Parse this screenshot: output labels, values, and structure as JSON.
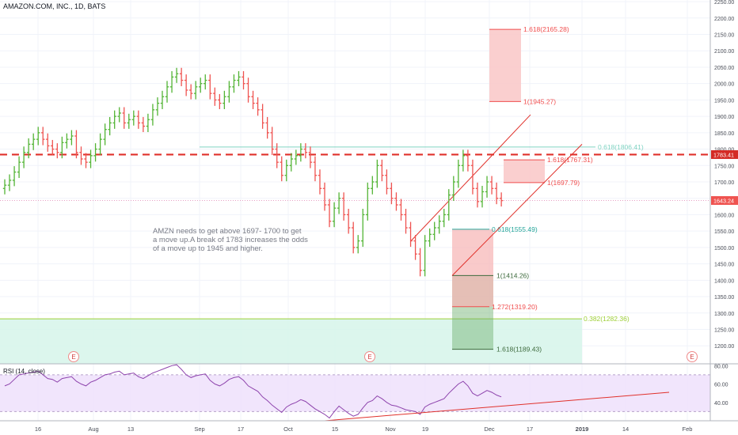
{
  "header": {
    "title": "AMAZON.COM, INC., 1D, BATS"
  },
  "rsi": {
    "title": "RSI (14, close)"
  },
  "annotation": {
    "text": "AMZN needs to get above 1697- 1700 to get\na move up.A break of 1783 increases the odds\nof a move up to 1945 and higher."
  },
  "colors": {
    "up_bar": "#26a69a",
    "up_bar_tv": "#53b435",
    "down_bar": "#ef5350",
    "resistance": "#e0312b",
    "fib_red": "#f04e4e",
    "fib_green": "#26a69a",
    "fib_lime": "#9ecf37",
    "rsi_line": "#8e44ad",
    "rsi_band": "#efe0fb"
  },
  "chart_data": {
    "type": "ohlc",
    "price_axis": {
      "ticks": [
        1200,
        1250,
        1300,
        1350,
        1400,
        1450,
        1500,
        1550,
        1600,
        1650,
        1700,
        1750,
        1800,
        1850,
        1900,
        1950,
        2000,
        2050,
        2100,
        2150,
        2200,
        2250
      ],
      "ylim": [
        1145,
        2255
      ]
    },
    "time_axis": {
      "labels": [
        "16",
        "Aug",
        "13",
        "Sep",
        "17",
        "Oct",
        "15",
        "Nov",
        "19",
        "Dec",
        "17",
        "2019",
        "14",
        "Feb"
      ]
    },
    "price_labels": {
      "resistance": "1783.41",
      "last": "1643.24"
    },
    "resistance_level": 1783.41,
    "last_price": 1643.24,
    "fib_levels": [
      {
        "label": "1.618(2165.28)",
        "value": 2165.28
      },
      {
        "label": "1(1945.27)",
        "value": 1945.27
      },
      {
        "label": "0.618(1806.41)",
        "value": 1806.41
      },
      {
        "label": "1.618(1767.31)",
        "value": 1767.31
      },
      {
        "label": "1(1697.79)",
        "value": 1697.79
      },
      {
        "label": "0.618(1555.49)",
        "value": 1555.49
      },
      {
        "label": "1(1414.26)",
        "value": 1414.26
      },
      {
        "label": "1.272(1319.20)",
        "value": 1319.2
      },
      {
        "label": "0.382(1282.36)",
        "value": 1282.36
      },
      {
        "label": "1.618(1189.43)",
        "value": 1189.43
      }
    ],
    "earnings_marker": "E",
    "closes": [
      1690,
      1705,
      1730,
      1760,
      1790,
      1815,
      1830,
      1850,
      1830,
      1810,
      1800,
      1790,
      1820,
      1830,
      1840,
      1790,
      1770,
      1760,
      1780,
      1800,
      1830,
      1860,
      1880,
      1900,
      1910,
      1880,
      1890,
      1900,
      1880,
      1870,
      1890,
      1920,
      1940,
      1960,
      1990,
      2020,
      2030,
      2010,
      1980,
      1970,
      1990,
      2000,
      2010,
      1970,
      1950,
      1940,
      1960,
      1990,
      2010,
      2020,
      2000,
      1960,
      1940,
      1920,
      1880,
      1850,
      1800,
      1760,
      1720,
      1750,
      1770,
      1780,
      1800,
      1790,
      1760,
      1720,
      1680,
      1630,
      1580,
      1620,
      1650,
      1600,
      1560,
      1500,
      1520,
      1600,
      1680,
      1700,
      1750,
      1720,
      1680,
      1650,
      1630,
      1600,
      1560,
      1520,
      1480,
      1430,
      1520,
      1540,
      1560,
      1580,
      1600,
      1660,
      1700,
      1750,
      1780,
      1750,
      1680,
      1640,
      1670,
      1700,
      1680,
      1650,
      1643
    ],
    "rsi": {
      "ylim": [
        20,
        82
      ],
      "ticks": [
        40,
        60,
        80
      ],
      "tick_labels": [
        "40.00",
        "60.00",
        "80.00"
      ],
      "band": [
        30,
        70
      ],
      "values": [
        58,
        60,
        65,
        70,
        71,
        72,
        73,
        74,
        70,
        66,
        65,
        62,
        66,
        67,
        68,
        63,
        60,
        58,
        62,
        64,
        67,
        70,
        71,
        73,
        74,
        70,
        71,
        72,
        68,
        66,
        69,
        72,
        74,
        76,
        78,
        80,
        81,
        76,
        70,
        67,
        69,
        70,
        71,
        64,
        60,
        58,
        61,
        65,
        67,
        68,
        64,
        58,
        55,
        52,
        46,
        42,
        37,
        33,
        29,
        35,
        38,
        40,
        43,
        41,
        37,
        33,
        30,
        27,
        23,
        30,
        36,
        32,
        28,
        25,
        27,
        34,
        40,
        42,
        47,
        44,
        40,
        37,
        36,
        34,
        32,
        31,
        30,
        27,
        35,
        38,
        40,
        42,
        44,
        50,
        55,
        60,
        63,
        58,
        50,
        47,
        50,
        53,
        51,
        48,
        46
      ],
      "trendline": [
        [
          20.5,
          20
        ],
        [
          133,
          51
        ]
      ]
    }
  }
}
